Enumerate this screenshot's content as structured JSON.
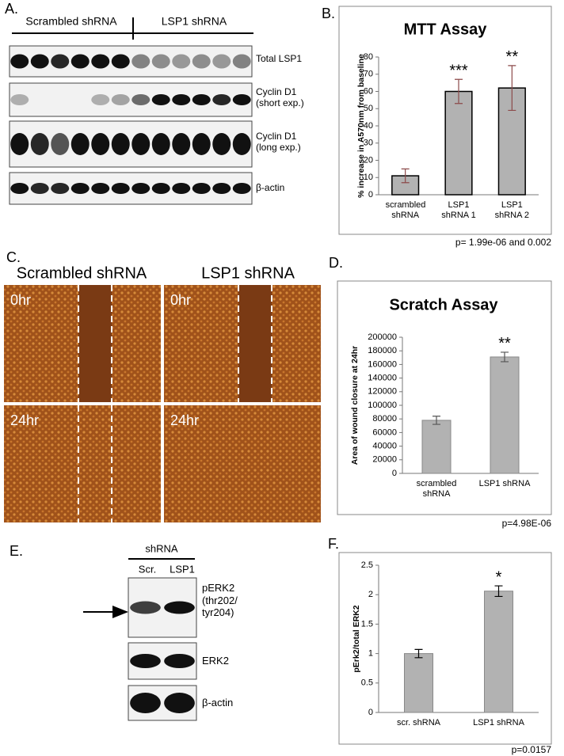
{
  "panels": {
    "A": {
      "letter": "A.",
      "groups": [
        "Scrambled shRNA",
        "LSP1 shRNA"
      ],
      "blots": [
        "Total LSP1",
        "Cyclin D1 (short exp.)",
        "Cyclin D1 (long exp.)",
        "β-actin"
      ]
    },
    "C": {
      "letter": "C.",
      "columns": [
        "Scrambled shRNA",
        "LSP1 shRNA"
      ],
      "images": [
        "0hr",
        "0hr",
        "24hr",
        "24hr"
      ]
    },
    "E": {
      "letter": "E.",
      "header": "shRNA",
      "lanes": [
        "Scr.",
        "LSP1"
      ],
      "blots": [
        "pERK2 (thr202/ tyr204)",
        "ERK2",
        "β-actin"
      ]
    }
  },
  "chart_data": [
    {
      "type": "bar",
      "letter": "B.",
      "title": "MTT Assay",
      "y_label": "% increase in A570nm from baseline",
      "categories": [
        "scrambled shRNA",
        "LSP1 shRNA 1",
        "LSP1 shRNA 2"
      ],
      "values": [
        11,
        60,
        62
      ],
      "errors": [
        4,
        7,
        13
      ],
      "color": "#b2b2b2",
      "error_color": "#8c4a4a",
      "ylim": [
        0,
        80
      ],
      "yticks": [
        0,
        10,
        20,
        30,
        40,
        50,
        60,
        70,
        80
      ],
      "annotations": [
        {
          "text": "***",
          "x": "LSP1 shRNA 1"
        },
        {
          "text": "**",
          "x": "LSP1 shRNA 2"
        }
      ],
      "footnote": "p= 1.99e-06 and 0.002"
    },
    {
      "type": "bar",
      "letter": "D.",
      "title": "Scratch Assay",
      "y_label": "Area of wound closure at 24hr",
      "categories": [
        "scrambled shRNA",
        "LSP1 shRNA"
      ],
      "values": [
        78000,
        171000
      ],
      "errors": [
        6000,
        7000
      ],
      "color": "#b2b2b2",
      "error_color": "#555555",
      "ylim": [
        0,
        200000
      ],
      "yticks": [
        0,
        20000,
        40000,
        60000,
        80000,
        100000,
        120000,
        140000,
        160000,
        180000,
        200000
      ],
      "annotations": [
        {
          "text": "**",
          "x": "LSP1 shRNA"
        }
      ],
      "footnote": "p=4.98E-06"
    },
    {
      "type": "bar",
      "letter": "F.",
      "y_label": "pErk2/total ERK2",
      "categories": [
        "scr. shRNA",
        "LSP1 shRNA"
      ],
      "values": [
        1.0,
        2.06
      ],
      "errors": [
        0.07,
        0.09
      ],
      "color": "#b2b2b2",
      "error_color": "#000000",
      "ylim": [
        0,
        2.5
      ],
      "yticks": [
        0,
        0.5,
        1,
        1.5,
        2,
        2.5
      ],
      "annotations": [
        {
          "text": "*",
          "x": "LSP1 shRNA"
        }
      ],
      "footnote": "p=0.0157"
    }
  ]
}
